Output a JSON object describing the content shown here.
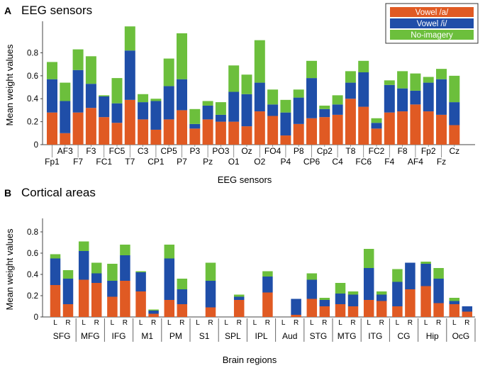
{
  "chart_data": {
    "legend": [
      {
        "name": "Vowel /a/",
        "color": "#e05a23"
      },
      {
        "name": "Vowel /i/",
        "color": "#1f4ea8"
      },
      {
        "name": "No-imagery",
        "color": "#6cbf3c"
      }
    ],
    "panels": [
      {
        "type": "bar",
        "stacked": true,
        "letter": "A",
        "title": "EEG sensors",
        "xlabel": "EEG sensors",
        "ylabel": "Mean weight values",
        "ylim": [
          0,
          1.05
        ],
        "yticks": [
          0,
          0.2,
          0.4,
          0.6,
          0.8
        ],
        "ytick_labels": [
          "0",
          "0.2",
          "0.4",
          "0.6",
          "0.8"
        ],
        "categories": [
          "Fp1",
          "AF3",
          "F7",
          "F3",
          "FC1",
          "FC5",
          "T7",
          "C3",
          "CP1",
          "CP5",
          "P7",
          "P3",
          "Pz",
          "PO3",
          "O1",
          "Oz",
          "O2",
          "FO4",
          "P4",
          "P8",
          "CP6",
          "Cp2",
          "C4",
          "T8",
          "FC6",
          "FC2",
          "F4",
          "F8",
          "AF4",
          "Fp2",
          "Fz",
          "Cz"
        ],
        "label_row": [
          1,
          0,
          1,
          0,
          1,
          0,
          1,
          0,
          1,
          0,
          1,
          0,
          1,
          0,
          1,
          0,
          1,
          0,
          1,
          0,
          1,
          0,
          1,
          0,
          1,
          0,
          1,
          0,
          1,
          0,
          1,
          0
        ],
        "series": [
          {
            "name": "Vowel /a/",
            "values": [
              0.28,
              0.1,
              0.28,
              0.32,
              0.24,
              0.19,
              0.39,
              0.22,
              0.13,
              0.22,
              0.3,
              0.14,
              0.22,
              0.2,
              0.2,
              0.16,
              0.29,
              0.25,
              0.08,
              0.18,
              0.23,
              0.24,
              0.26,
              0.4,
              0.33,
              0.14,
              0.28,
              0.29,
              0.35,
              0.29,
              0.26,
              0.17
            ]
          },
          {
            "name": "Vowel /i/",
            "values": [
              0.29,
              0.28,
              0.37,
              0.21,
              0.18,
              0.17,
              0.43,
              0.15,
              0.25,
              0.29,
              0.27,
              0.04,
              0.12,
              0.06,
              0.26,
              0.28,
              0.25,
              0.1,
              0.2,
              0.23,
              0.35,
              0.07,
              0.09,
              0.14,
              0.3,
              0.05,
              0.24,
              0.2,
              0.12,
              0.25,
              0.31,
              0.2
            ]
          },
          {
            "name": "No-imagery",
            "values": [
              0.15,
              0.16,
              0.18,
              0.24,
              0.01,
              0.22,
              0.21,
              0.07,
              0.02,
              0.24,
              0.4,
              0.13,
              0.04,
              0.11,
              0.23,
              0.17,
              0.37,
              0.13,
              0.11,
              0.07,
              0.15,
              0.03,
              0.08,
              0.1,
              0.1,
              0.04,
              0.04,
              0.15,
              0.15,
              0.05,
              0.09,
              0.23
            ]
          }
        ]
      },
      {
        "type": "bar",
        "stacked": true,
        "letter": "B",
        "title": "Cortical areas",
        "xlabel": "Brain regions",
        "ylabel": "Mean weight values",
        "ylim": [
          0,
          0.9
        ],
        "yticks": [
          0,
          0.2,
          0.4,
          0.6,
          0.8
        ],
        "ytick_labels": [
          "0",
          "0.2",
          "0.4",
          "0.6",
          "0.8"
        ],
        "groups": [
          "SFG",
          "MFG",
          "IFG",
          "M1",
          "PM",
          "S1",
          "SPL",
          "IPL",
          "Aud",
          "STG",
          "MTG",
          "ITG",
          "CG",
          "Hip",
          "OcG"
        ],
        "sub_labels": [
          "L",
          "R"
        ],
        "categories": [
          "SFG L",
          "SFG R",
          "MFG L",
          "MFG R",
          "IFG L",
          "IFG R",
          "M1 L",
          "M1 R",
          "PM L",
          "PM R",
          "S1 L",
          "S1 R",
          "SPL L",
          "SPL R",
          "IPL L",
          "IPL R",
          "Aud L",
          "Aud R",
          "STG L",
          "STG R",
          "MTG L",
          "MTG R",
          "ITG L",
          "ITG R",
          "CG L",
          "CG R",
          "Hip L",
          "Hip R",
          "OcG L",
          "OcG R"
        ],
        "series": [
          {
            "name": "Vowel /a/",
            "values": [
              0.3,
              0.12,
              0.35,
              0.32,
              0.19,
              0.34,
              0.24,
              0.03,
              0.16,
              0.12,
              0.0,
              0.09,
              0.0,
              0.16,
              0.0,
              0.23,
              0.0,
              0.02,
              0.17,
              0.1,
              0.12,
              0.1,
              0.16,
              0.15,
              0.1,
              0.26,
              0.29,
              0.13,
              0.12,
              0.05
            ]
          },
          {
            "name": "Vowel /i/",
            "values": [
              0.25,
              0.24,
              0.27,
              0.09,
              0.15,
              0.24,
              0.18,
              0.03,
              0.39,
              0.14,
              0.0,
              0.25,
              0.0,
              0.03,
              0.0,
              0.15,
              0.0,
              0.15,
              0.18,
              0.06,
              0.1,
              0.11,
              0.3,
              0.06,
              0.23,
              0.25,
              0.21,
              0.23,
              0.03,
              0.05
            ]
          },
          {
            "name": "No-imagery",
            "values": [
              0.04,
              0.08,
              0.09,
              0.1,
              0.16,
              0.1,
              0.01,
              0.01,
              0.13,
              0.1,
              0.0,
              0.17,
              0.0,
              0.02,
              0.0,
              0.05,
              0.0,
              0.0,
              0.06,
              0.02,
              0.1,
              0.03,
              0.18,
              0.03,
              0.12,
              0.0,
              0.02,
              0.1,
              0.03,
              0.0
            ]
          }
        ]
      }
    ]
  }
}
